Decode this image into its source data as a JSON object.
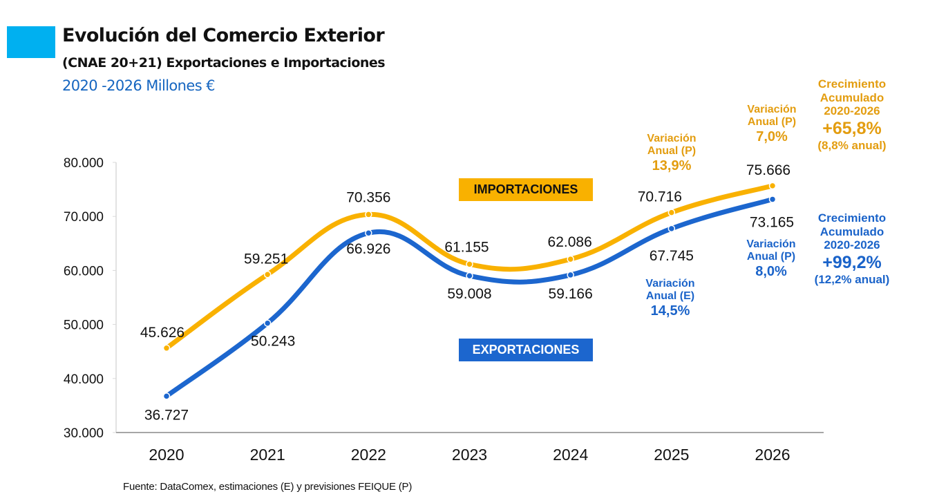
{
  "header": {
    "title": "Evolución del Comercio Exterior",
    "subtitle": "(CNAE 20+21) Exportaciones e Importaciones",
    "period": "2020 -2026 Millones €"
  },
  "colors": {
    "accent": "#00B0F0",
    "imports": "#F9B100",
    "exports": "#1C66CE",
    "imports_text": "#E39D10",
    "exports_text": "#1A63C9"
  },
  "legend": {
    "imports": "IMPORTACIONES",
    "exports": "EXPORTACIONES"
  },
  "annotations": {
    "imp_2025": {
      "label1": "Variación",
      "label2": "Anual (P)",
      "value": "13,9%"
    },
    "imp_2026": {
      "label1": "Variación",
      "label2": "Anual (P)",
      "value": "7,0%"
    },
    "exp_2025": {
      "label1": "Variación",
      "label2": "Anual (E)",
      "value": "14,5%"
    },
    "exp_2026": {
      "label1": "Variación",
      "label2": "Anual (P)",
      "value": "8,0%"
    },
    "imp_cumulative": {
      "line1": "Crecimiento",
      "line2": "Acumulado",
      "line3": "2020-2026",
      "value": "+65,8%",
      "annual": "(8,8% anual)"
    },
    "exp_cumulative": {
      "line1": "Crecimiento",
      "line2": "Acumulado",
      "line3": "2020-2026",
      "value": "+99,2%",
      "annual": "(12,2% anual)"
    }
  },
  "source": "Fuente: DataComex, estimaciones (E) y previsiones FEIQUE (P)",
  "chart_data": {
    "type": "line",
    "title": "Evolución del Comercio Exterior",
    "subtitle": "(CNAE 20+21) Exportaciones e Importaciones — 2020 -2026 Millones €",
    "xlabel": "",
    "ylabel": "",
    "categories": [
      "2020",
      "2021",
      "2022",
      "2023",
      "2024",
      "2025",
      "2026"
    ],
    "ylim": [
      30000,
      80000
    ],
    "yticks": [
      30000,
      40000,
      50000,
      60000,
      70000,
      80000
    ],
    "ytick_labels": [
      "30.000",
      "40.000",
      "50.000",
      "60.000",
      "70.000",
      "80.000"
    ],
    "grid": false,
    "smooth": true,
    "series": [
      {
        "name": "IMPORTACIONES",
        "values": [
          45626,
          59251,
          70356,
          61155,
          62086,
          70716,
          75666
        ],
        "labels": [
          "45.626",
          "59.251",
          "70.356",
          "61.155",
          "62.086",
          "70.716",
          "75.666"
        ]
      },
      {
        "name": "EXPORTACIONES",
        "values": [
          36727,
          50243,
          66926,
          59008,
          59166,
          67745,
          73165
        ],
        "labels": [
          "36.727",
          "50.243",
          "66.926",
          "59.008",
          "59.166",
          "67.745",
          "73.165"
        ]
      }
    ]
  }
}
